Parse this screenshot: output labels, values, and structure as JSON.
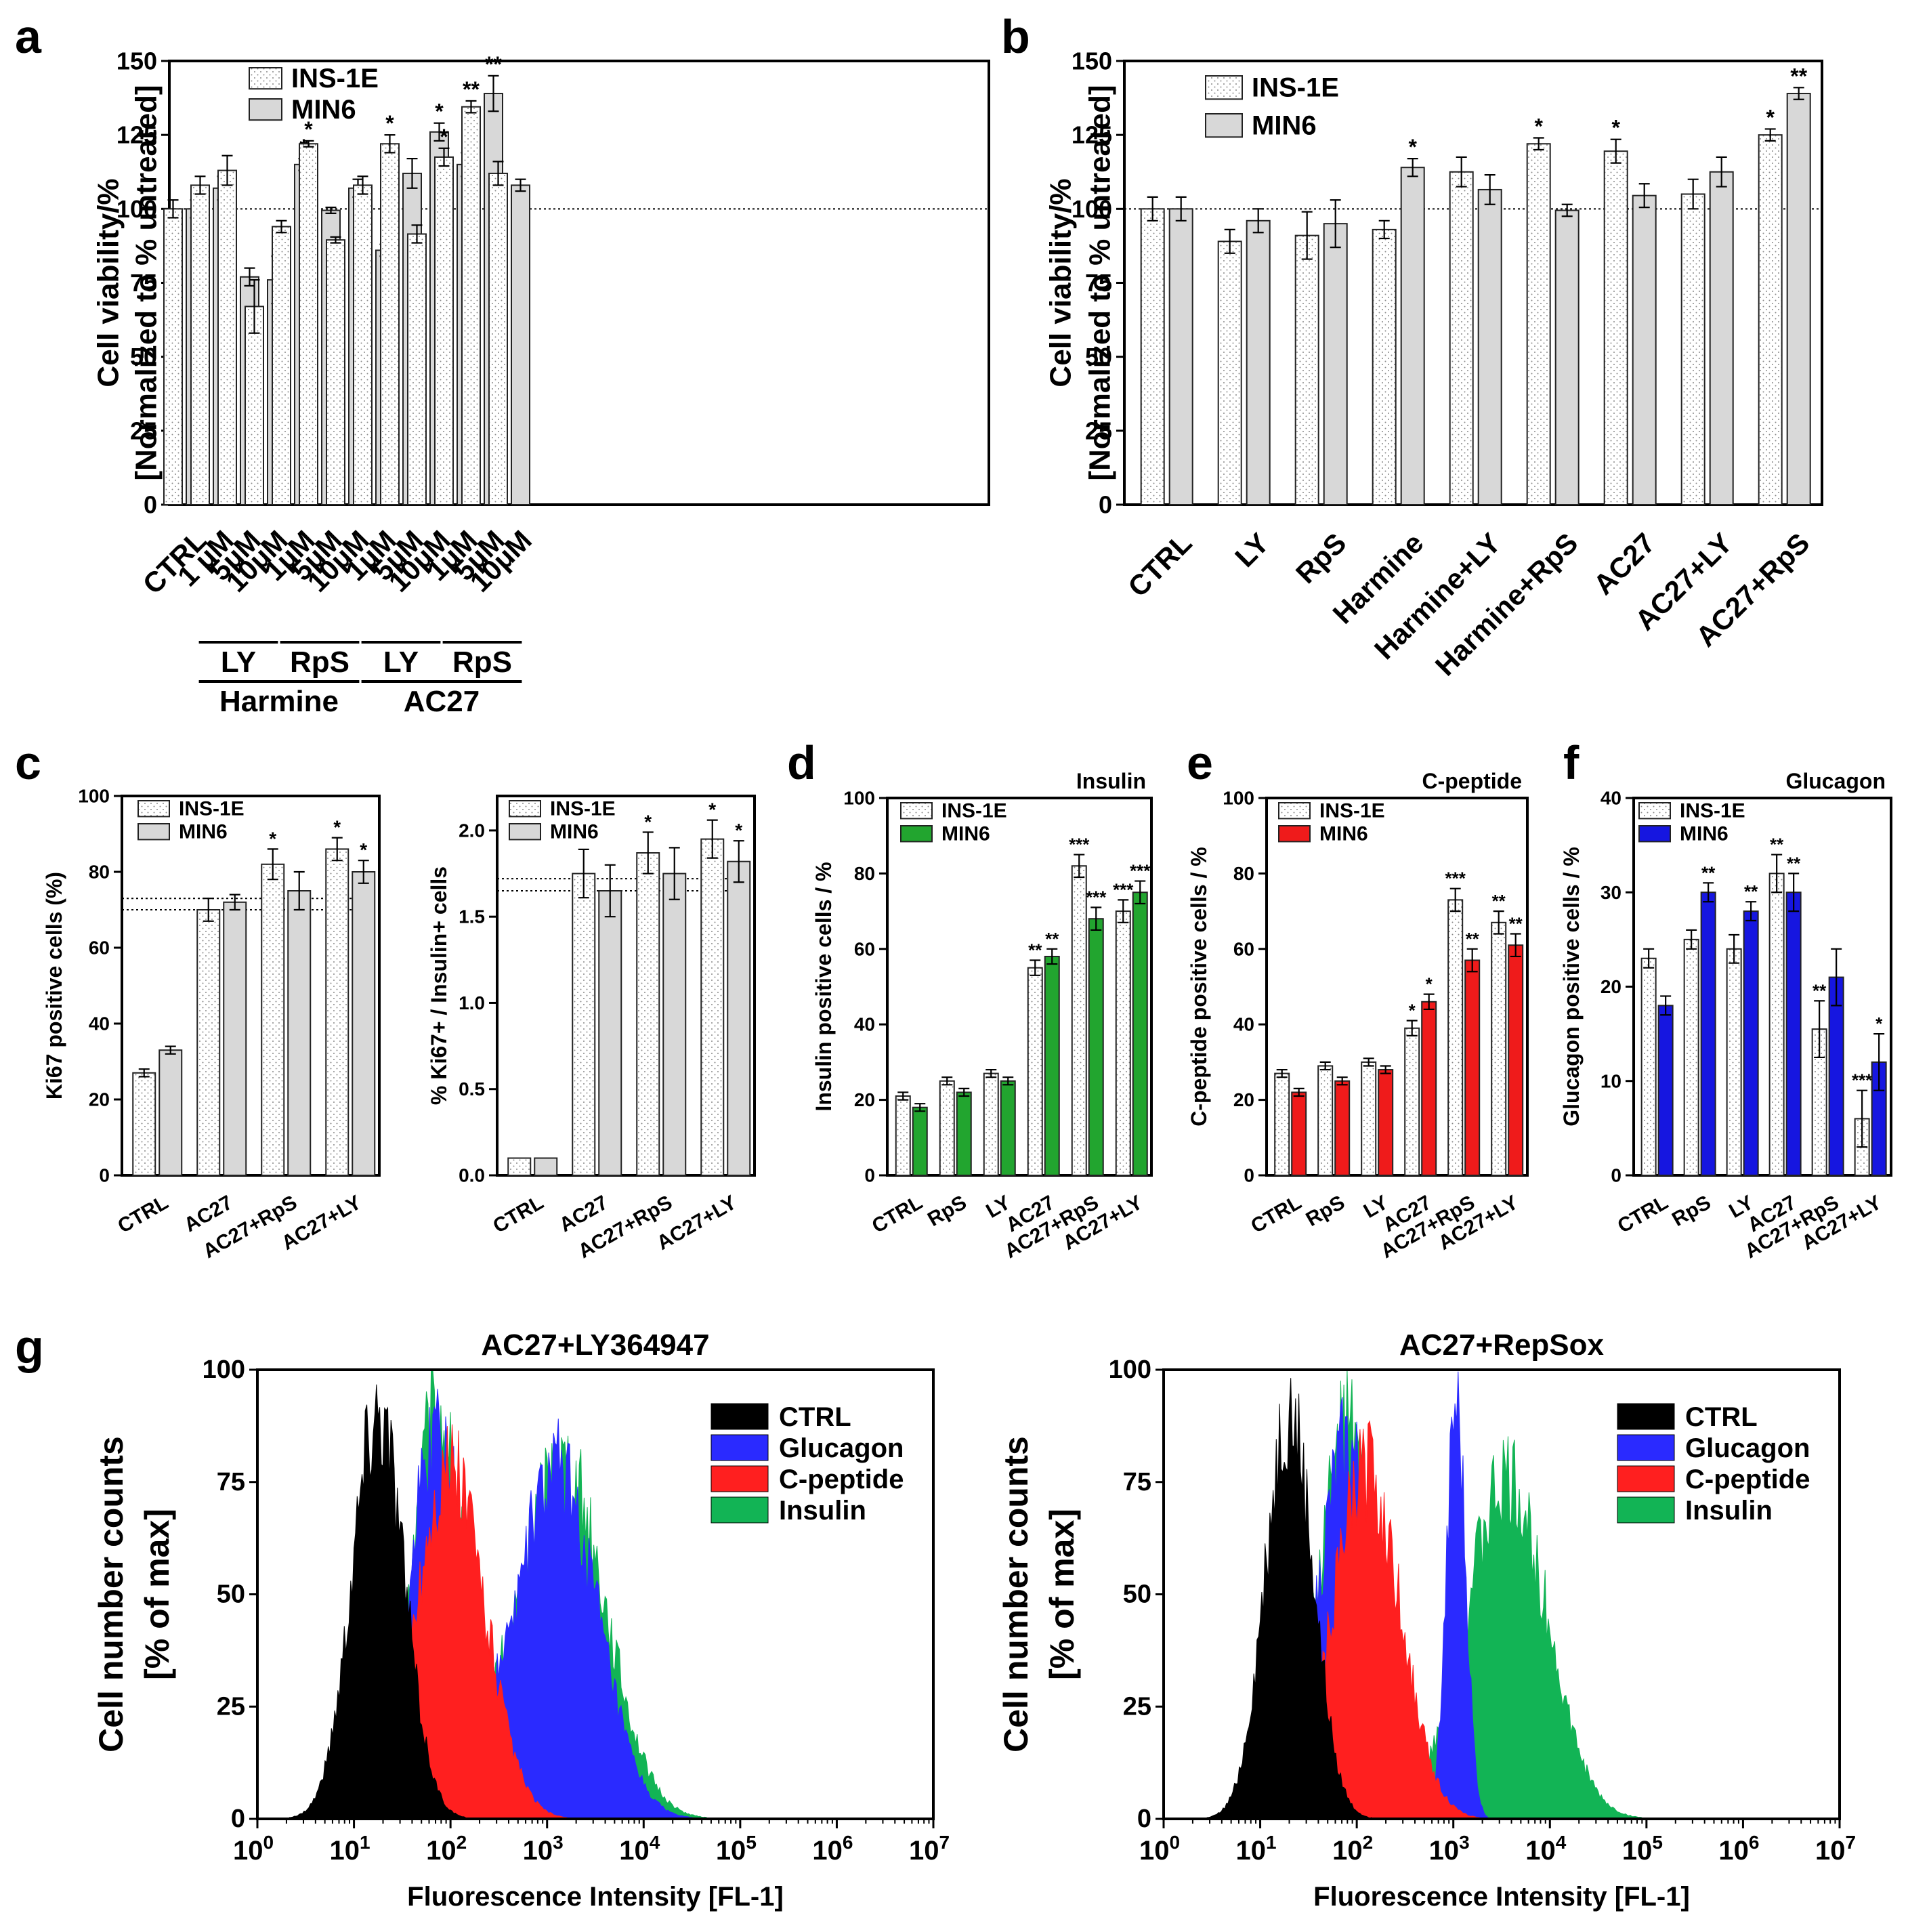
{
  "colors": {
    "ins_fill": "#ffffff",
    "min6_gray": "#d8d8d8",
    "green": "#22a52f",
    "red": "#ef1b1b",
    "blue": "#1616e0",
    "black": "#000000",
    "hist_blue": "#2a2aff",
    "hist_red": "#ff1f1f",
    "hist_green": "#12b455"
  },
  "chart_data": [
    {
      "panel": "a",
      "type": "bar",
      "ylabel_lines": [
        "Cell viability/%",
        "[Normalized to % untreated]"
      ],
      "ylim": [
        0,
        150
      ],
      "yticks": [
        0,
        25,
        50,
        75,
        100,
        125,
        150
      ],
      "reference_line": 100,
      "series": [
        {
          "name": "INS-1E",
          "pattern": "dots"
        },
        {
          "name": "MIN6",
          "pattern": "gray"
        }
      ],
      "categories": [
        "CTRL",
        "1 μM",
        "5μM",
        "10μM",
        "1μM",
        "5μM",
        "10μM",
        "1μM",
        "5μM",
        "10μM",
        "1μM",
        "5μM",
        "10μM"
      ],
      "values": [
        [
          100,
          100
        ],
        [
          108,
          107
        ],
        [
          113,
          77
        ],
        [
          67,
          76
        ],
        [
          94,
          115
        ],
        [
          122,
          99.5
        ],
        [
          89.5,
          107
        ],
        [
          108,
          86
        ],
        [
          122,
          112
        ],
        [
          91.5,
          126
        ],
        [
          117.5,
          115
        ],
        [
          134.5,
          139
        ],
        [
          112,
          108
        ]
      ],
      "errors": [
        [
          3,
          3
        ],
        [
          3,
          4
        ],
        [
          5,
          3
        ],
        [
          9,
          8
        ],
        [
          2,
          2
        ],
        [
          1,
          1
        ],
        [
          1,
          3
        ],
        [
          3,
          2
        ],
        [
          3,
          5
        ],
        [
          3,
          3
        ],
        [
          3,
          4
        ],
        [
          2,
          6
        ],
        [
          4,
          2
        ]
      ],
      "stars": [
        [
          "",
          ""
        ],
        [
          "",
          ""
        ],
        [
          "",
          ""
        ],
        [
          "",
          ""
        ],
        [
          "",
          "*"
        ],
        [
          "*",
          ""
        ],
        [
          "",
          ""
        ],
        [
          "",
          ""
        ],
        [
          "*",
          ""
        ],
        [
          "",
          "*"
        ],
        [
          "*",
          ""
        ],
        [
          "**",
          "**"
        ],
        [
          "",
          ""
        ]
      ],
      "groups": [
        {
          "label": "LY",
          "from": 1,
          "to": 3,
          "level": 1
        },
        {
          "label": "RpS",
          "from": 4,
          "to": 6,
          "level": 1
        },
        {
          "label": "LY",
          "from": 7,
          "to": 9,
          "level": 1
        },
        {
          "label": "RpS",
          "from": 10,
          "to": 12,
          "level": 1
        },
        {
          "label": "Harmine",
          "from": 1,
          "to": 6,
          "level": 2
        },
        {
          "label": "AC27",
          "from": 7,
          "to": 12,
          "level": 2
        }
      ]
    },
    {
      "panel": "b",
      "type": "bar",
      "ylabel_lines": [
        "Cell viability/%",
        "[Normalized to % untreated]"
      ],
      "ylim": [
        0,
        150
      ],
      "yticks": [
        0,
        25,
        50,
        75,
        100,
        125,
        150
      ],
      "reference_line": 100,
      "series": [
        {
          "name": "INS-1E",
          "pattern": "dots"
        },
        {
          "name": "MIN6",
          "pattern": "gray"
        }
      ],
      "categories": [
        "CTRL",
        "LY",
        "RpS",
        "Harmine",
        "Harmine+LY",
        "Harmine+RpS",
        "AC27",
        "AC27+LY",
        "AC27+RpS"
      ],
      "values": [
        [
          100,
          100
        ],
        [
          89,
          96
        ],
        [
          91,
          95
        ],
        [
          93,
          114
        ],
        [
          112.5,
          106.5
        ],
        [
          122,
          99.5
        ],
        [
          119.5,
          104.5
        ],
        [
          105,
          112.5
        ],
        [
          125,
          139
        ]
      ],
      "errors": [
        [
          4,
          4
        ],
        [
          4,
          4
        ],
        [
          8,
          8
        ],
        [
          3,
          3
        ],
        [
          5,
          5
        ],
        [
          2,
          2
        ],
        [
          4,
          4
        ],
        [
          5,
          5
        ],
        [
          2,
          2
        ]
      ],
      "stars": [
        [
          "",
          ""
        ],
        [
          "",
          ""
        ],
        [
          "",
          ""
        ],
        [
          "",
          "*"
        ],
        [
          "",
          ""
        ],
        [
          "*",
          ""
        ],
        [
          "*",
          ""
        ],
        [
          "",
          ""
        ],
        [
          "*",
          "**"
        ]
      ]
    },
    {
      "panel": "c",
      "type": "bar",
      "ylabel_lines": [
        "Ki67 positive cells (%)"
      ],
      "ylim": [
        0,
        100
      ],
      "yticks": [
        0,
        20,
        40,
        60,
        80,
        100
      ],
      "reference_lines": [
        70,
        73
      ],
      "series": [
        {
          "name": "INS-1E",
          "pattern": "dots"
        },
        {
          "name": "MIN6",
          "pattern": "gray"
        }
      ],
      "categories": [
        "CTRL",
        "AC27",
        "AC27+RpS",
        "AC27+LY"
      ],
      "values": [
        [
          27,
          33
        ],
        [
          70,
          72
        ],
        [
          82,
          75
        ],
        [
          86,
          80
        ]
      ],
      "errors": [
        [
          1,
          1
        ],
        [
          3,
          2
        ],
        [
          4,
          5
        ],
        [
          3,
          3
        ]
      ],
      "stars": [
        [
          "",
          ""
        ],
        [
          "",
          ""
        ],
        [
          "*",
          ""
        ],
        [
          "*",
          "*"
        ]
      ]
    },
    {
      "panel": "c2",
      "type": "bar",
      "ylabel_lines": [
        "% Ki67+ / Insulin+ cells"
      ],
      "ylim": [
        0,
        2.2
      ],
      "yticks": [
        0.0,
        0.5,
        1.0,
        1.5,
        2.0
      ],
      "tick_decimals": 1,
      "reference_lines": [
        1.65,
        1.72
      ],
      "series": [
        {
          "name": "INS-1E",
          "pattern": "dots"
        },
        {
          "name": "MIN6",
          "pattern": "gray"
        }
      ],
      "categories": [
        "CTRL",
        "AC27",
        "AC27+RpS",
        "AC27+LY"
      ],
      "values": [
        [
          0.1,
          0.1
        ],
        [
          1.75,
          1.65
        ],
        [
          1.87,
          1.75
        ],
        [
          1.95,
          1.82
        ]
      ],
      "errors": [
        [
          0,
          0
        ],
        [
          0.14,
          0.15
        ],
        [
          0.12,
          0.15
        ],
        [
          0.11,
          0.12
        ]
      ],
      "stars": [
        [
          "",
          ""
        ],
        [
          "",
          ""
        ],
        [
          "*",
          ""
        ],
        [
          "*",
          "*"
        ]
      ]
    },
    {
      "panel": "d",
      "type": "bar",
      "title": "Insulin",
      "ylabel_lines": [
        "Insulin positive cells / %"
      ],
      "ylim": [
        0,
        100
      ],
      "yticks": [
        0,
        20,
        40,
        60,
        80,
        100
      ],
      "series": [
        {
          "name": "INS-1E",
          "pattern": "dots"
        },
        {
          "name": "MIN6",
          "pattern": "green"
        }
      ],
      "categories": [
        "CTRL",
        "RpS",
        "LY",
        "AC27",
        "AC27+RpS",
        "AC27+LY"
      ],
      "values": [
        [
          21,
          18
        ],
        [
          25,
          22
        ],
        [
          27,
          25
        ],
        [
          55,
          58
        ],
        [
          82,
          68
        ],
        [
          70,
          75
        ]
      ],
      "errors": [
        [
          1,
          1
        ],
        [
          1,
          1
        ],
        [
          1,
          1
        ],
        [
          2,
          2
        ],
        [
          3,
          3
        ],
        [
          3,
          3
        ]
      ],
      "stars": [
        [
          "",
          ""
        ],
        [
          "",
          ""
        ],
        [
          "",
          ""
        ],
        [
          "**",
          "**"
        ],
        [
          "***",
          "***"
        ],
        [
          "***",
          "***"
        ]
      ]
    },
    {
      "panel": "e",
      "type": "bar",
      "title": "C-peptide",
      "ylabel_lines": [
        "C-peptide positive cells / %"
      ],
      "ylim": [
        0,
        100
      ],
      "yticks": [
        0,
        20,
        40,
        60,
        80,
        100
      ],
      "series": [
        {
          "name": "INS-1E",
          "pattern": "dots"
        },
        {
          "name": "MIN6",
          "pattern": "red"
        }
      ],
      "categories": [
        "CTRL",
        "RpS",
        "LY",
        "AC27",
        "AC27+RpS",
        "AC27+LY"
      ],
      "values": [
        [
          27,
          22
        ],
        [
          29,
          25
        ],
        [
          30,
          28
        ],
        [
          39,
          46
        ],
        [
          73,
          57
        ],
        [
          67,
          61
        ]
      ],
      "errors": [
        [
          1,
          1
        ],
        [
          1,
          1
        ],
        [
          1,
          1
        ],
        [
          2,
          2
        ],
        [
          3,
          3
        ],
        [
          3,
          3
        ]
      ],
      "stars": [
        [
          "",
          ""
        ],
        [
          "",
          ""
        ],
        [
          "",
          ""
        ],
        [
          "*",
          "*"
        ],
        [
          "***",
          "**"
        ],
        [
          "**",
          "**"
        ]
      ]
    },
    {
      "panel": "f",
      "type": "bar",
      "title": "Glucagon",
      "ylabel_lines": [
        "Glucagon positive cells / %"
      ],
      "ylim": [
        0,
        40
      ],
      "yticks": [
        0,
        10,
        20,
        30,
        40
      ],
      "series": [
        {
          "name": "INS-1E",
          "pattern": "dots"
        },
        {
          "name": "MIN6",
          "pattern": "blue"
        }
      ],
      "categories": [
        "CTRL",
        "RpS",
        "LY",
        "AC27",
        "AC27+RpS",
        "AC27+LY"
      ],
      "values": [
        [
          23,
          18
        ],
        [
          25,
          30
        ],
        [
          24,
          28
        ],
        [
          32,
          30
        ],
        [
          15.5,
          21
        ],
        [
          6,
          12
        ]
      ],
      "errors": [
        [
          1,
          1
        ],
        [
          1,
          1
        ],
        [
          1.5,
          1
        ],
        [
          2,
          2
        ],
        [
          3,
          3
        ],
        [
          3,
          3
        ]
      ],
      "stars": [
        [
          "",
          ""
        ],
        [
          "",
          "**"
        ],
        [
          "",
          "**"
        ],
        [
          "**",
          "**"
        ],
        [
          "**",
          ""
        ],
        [
          "***",
          "*"
        ]
      ]
    },
    {
      "panel": "g1",
      "type": "histogram",
      "title": "AC27+LY364947",
      "xlabel": "Fluorescence Intensity [FL-1]",
      "ylabel_lines": [
        "Cell number counts",
        "[% of max]"
      ],
      "xlim_log10": [
        0,
        7
      ],
      "xtick_exponents": [
        0,
        1,
        2,
        3,
        4,
        5,
        6,
        7
      ],
      "ylim": [
        0,
        100
      ],
      "yticks": [
        0,
        25,
        50,
        75,
        100
      ],
      "series": [
        {
          "name": "Insulin",
          "color_key": "hist_green",
          "peaks": [
            {
              "mu": 1.85,
              "sigma": 0.28,
              "h": 90
            },
            {
              "mu": 3.15,
              "sigma": 0.45,
              "h": 82
            }
          ]
        },
        {
          "name": "Glucagon",
          "color_key": "hist_blue",
          "peaks": [
            {
              "mu": 1.85,
              "sigma": 0.28,
              "h": 88
            },
            {
              "mu": 3.1,
              "sigma": 0.42,
              "h": 80
            }
          ]
        },
        {
          "name": "C-peptide",
          "color_key": "hist_red",
          "peaks": [
            {
              "mu": 2.0,
              "sigma": 0.36,
              "h": 80
            }
          ]
        },
        {
          "name": "CTRL",
          "color_key": "black",
          "peaks": [
            {
              "mu": 1.25,
              "sigma": 0.27,
              "h": 93
            }
          ]
        }
      ]
    },
    {
      "panel": "g2",
      "type": "histogram",
      "title": "AC27+RepSox",
      "xlabel": "Fluorescence Intensity [FL-1]",
      "ylabel_lines": [
        "Cell number counts",
        "[% of max]"
      ],
      "xlim_log10": [
        0,
        7
      ],
      "xtick_exponents": [
        0,
        1,
        2,
        3,
        4,
        5,
        6,
        7
      ],
      "ylim": [
        0,
        100
      ],
      "yticks": [
        0,
        25,
        50,
        75,
        100
      ],
      "series": [
        {
          "name": "Insulin",
          "color_key": "hist_green",
          "peaks": [
            {
              "mu": 1.9,
              "sigma": 0.3,
              "h": 90
            },
            {
              "mu": 3.55,
              "sigma": 0.42,
              "h": 78
            }
          ]
        },
        {
          "name": "Glucagon",
          "color_key": "hist_blue",
          "peaks": [
            {
              "mu": 1.9,
              "sigma": 0.3,
              "h": 86
            },
            {
              "mu": 3.03,
              "sigma": 0.1,
              "h": 95
            }
          ]
        },
        {
          "name": "C-peptide",
          "color_key": "hist_red",
          "peaks": [
            {
              "mu": 2.1,
              "sigma": 0.35,
              "h": 80
            }
          ]
        },
        {
          "name": "CTRL",
          "color_key": "black",
          "peaks": [
            {
              "mu": 1.3,
              "sigma": 0.25,
              "h": 93
            }
          ]
        }
      ],
      "legend_order": [
        "CTRL",
        "Glucagon",
        "C-peptide",
        "Insulin"
      ]
    }
  ],
  "panel_letters": [
    "a",
    "b",
    "c",
    "d",
    "e",
    "f",
    "g"
  ]
}
